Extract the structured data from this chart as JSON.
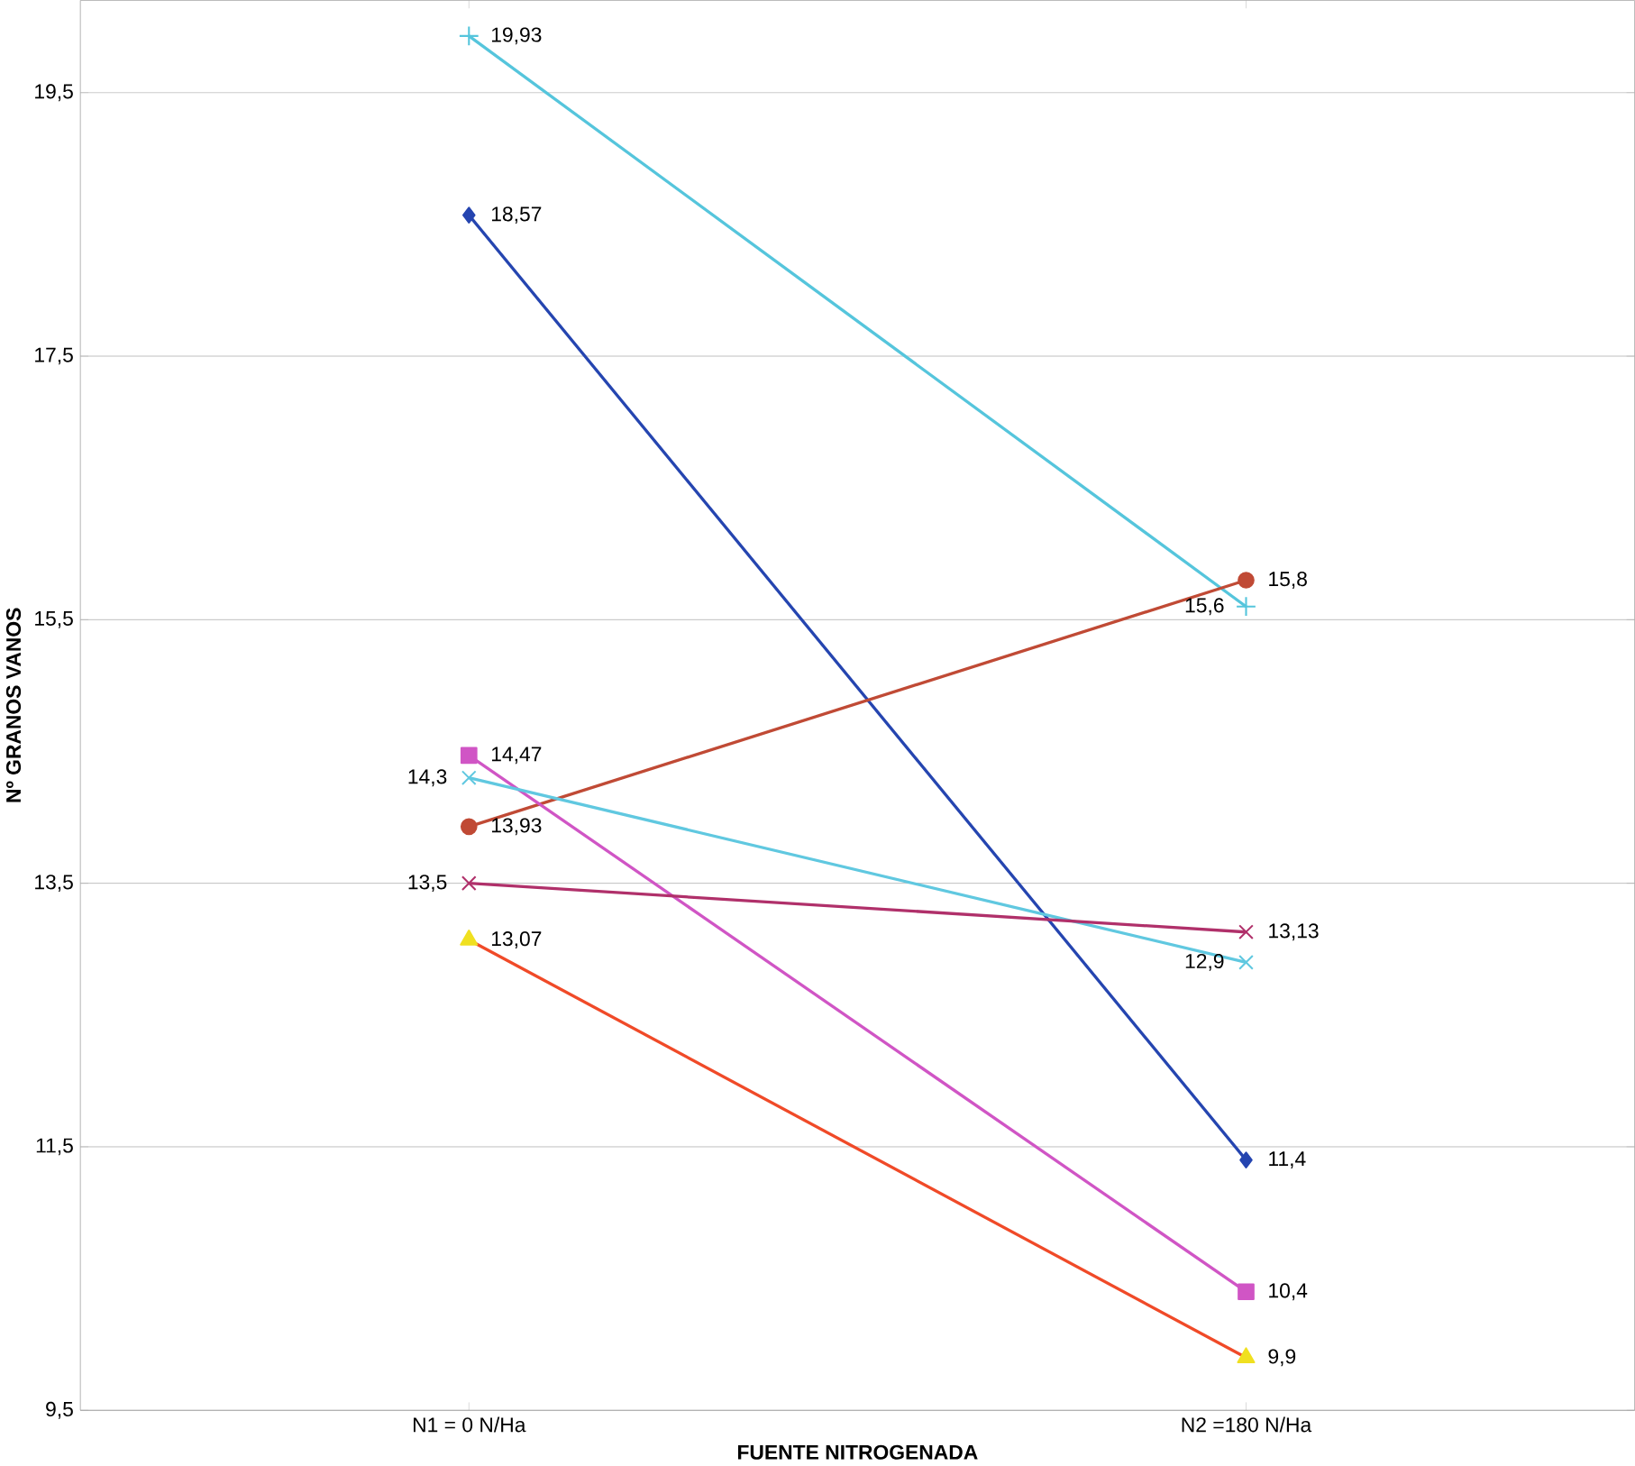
{
  "chart_data": {
    "type": "line",
    "xlabel": "FUENTE NITROGENADA",
    "ylabel": "Nº GRANOS VANOS",
    "categories": [
      "N1 = 0 N/Ha",
      "N2  =180 N/Ha"
    ],
    "ylim": [
      9.5,
      20.2
    ],
    "yticks": [
      {
        "value": 9.5,
        "label": "9,5"
      },
      {
        "value": 11.5,
        "label": "11,5"
      },
      {
        "value": 13.5,
        "label": "13,5"
      },
      {
        "value": 15.5,
        "label": "15,5"
      },
      {
        "value": 17.5,
        "label": "17,5"
      },
      {
        "value": 19.5,
        "label": "19,5"
      }
    ],
    "grid": "y",
    "series": [
      {
        "color": "#2545b0",
        "marker": "diamond",
        "values": [
          18.57,
          11.4
        ],
        "value_labels": [
          "18,57",
          "11,4"
        ]
      },
      {
        "color": "#55c5dc",
        "marker": "plus",
        "values": [
          19.93,
          15.6
        ],
        "value_labels": [
          "19,93",
          "15,6"
        ]
      },
      {
        "color": "#c04a35",
        "marker": "circle",
        "values": [
          13.93,
          15.8
        ],
        "value_labels": [
          "13,93",
          "15,8"
        ]
      },
      {
        "color": "#d055c5",
        "marker": "square",
        "values": [
          14.47,
          10.4
        ],
        "value_labels": [
          "14,47",
          "10,4"
        ]
      },
      {
        "color": "#60c8e0",
        "marker": "cross",
        "values": [
          14.3,
          12.9
        ],
        "value_labels": [
          "14,3",
          "12,9"
        ]
      },
      {
        "color": "#b0306a",
        "marker": "cross",
        "values": [
          13.5,
          13.13
        ],
        "value_labels": [
          "13,5",
          "13,13"
        ]
      },
      {
        "color": "#f04a28",
        "colors": [
          "#f0e020",
          "#f0e020"
        ],
        "marker": "triangle",
        "values": [
          13.07,
          9.9
        ],
        "value_labels": [
          "13,07",
          "9,9"
        ]
      }
    ]
  }
}
